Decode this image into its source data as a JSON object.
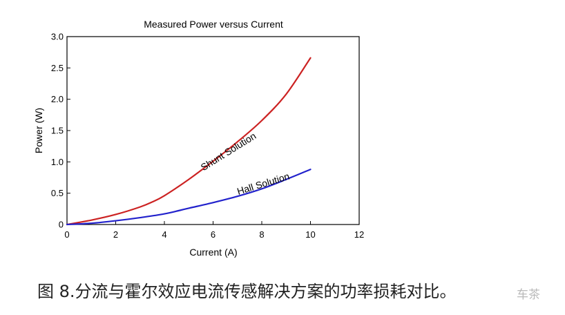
{
  "chart_data": {
    "type": "line",
    "title": "Measured Power versus Current",
    "xlabel": "Current (A)",
    "ylabel": "Power (W)",
    "xlim": [
      0,
      12
    ],
    "ylim": [
      0,
      3.0
    ],
    "xticks": [
      0,
      2,
      4,
      6,
      8,
      10,
      12
    ],
    "xtick_labels": [
      "0",
      "2",
      "4",
      "6",
      "8",
      "10",
      "12"
    ],
    "yticks": [
      0,
      0.5,
      1.0,
      1.5,
      2.0,
      2.5,
      3.0
    ],
    "ytick_labels": [
      "0",
      "0.5",
      "1.0",
      "1.5",
      "2.0",
      "2.5",
      "3.0"
    ],
    "grid": false,
    "legend": "none",
    "series": [
      {
        "name": "Shunt Solution",
        "color": "#cc2222",
        "x": [
          0,
          1,
          2,
          3,
          3.5,
          4,
          5,
          6,
          7,
          8,
          9,
          10
        ],
        "y": [
          0,
          0.07,
          0.16,
          0.28,
          0.36,
          0.46,
          0.72,
          1.01,
          1.32,
          1.66,
          2.08,
          2.66
        ]
      },
      {
        "name": "Hall Solution",
        "color": "#2222cc",
        "x": [
          0,
          1,
          2,
          3,
          4,
          5,
          6,
          7,
          8,
          9,
          10
        ],
        "y": [
          0,
          0.02,
          0.06,
          0.11,
          0.17,
          0.26,
          0.35,
          0.45,
          0.57,
          0.72,
          0.88
        ]
      }
    ],
    "annotations": [
      {
        "text": "Shunt Solution",
        "x": 6.7,
        "y": 1.12,
        "angle": -32
      },
      {
        "text": "Hall Solution",
        "x": 8.1,
        "y": 0.6,
        "angle": -17
      }
    ]
  },
  "caption": "图 8.分流与霍尔效应电流传感解决方案的功率损耗对比。",
  "watermark": "车茶"
}
